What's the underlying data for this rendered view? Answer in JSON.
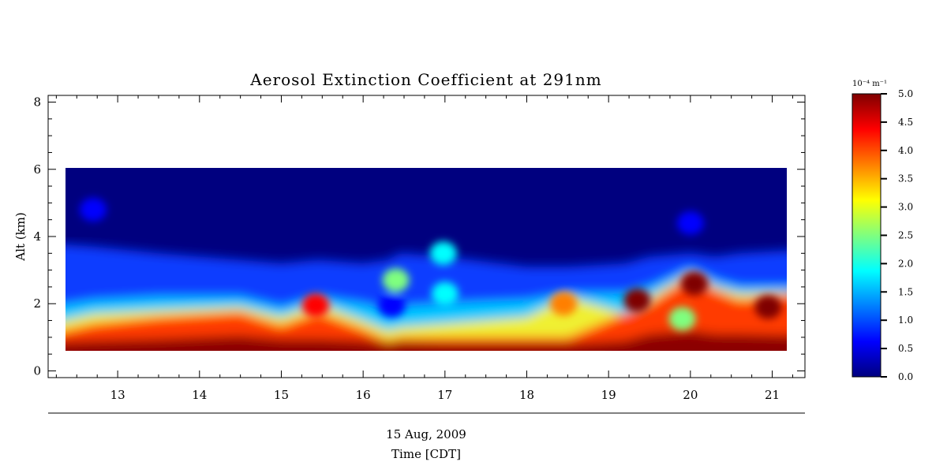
{
  "chart_data": {
    "type": "heatmap",
    "title": "Aerosol Extinction Coefficient at 291nm",
    "ylabel": "Alt (km)",
    "xlabel_date": "15 Aug, 2009",
    "xlabel": "Time [CDT]",
    "x_range": [
      12.15,
      21.4
    ],
    "y_range": [
      -0.2,
      8.2
    ],
    "data_time_range": [
      12.35,
      21.15
    ],
    "data_alt_range": [
      0.6,
      6.0
    ],
    "x_ticks": [
      13,
      14,
      15,
      16,
      17,
      18,
      19,
      20,
      21
    ],
    "y_ticks": [
      0,
      2,
      4,
      6,
      8
    ],
    "colorbar": {
      "unit_label": "10⁻⁴ m⁻¹",
      "range": [
        0.0,
        5.0
      ],
      "ticks": [
        "0.0",
        "0.5",
        "1.0",
        "1.5",
        "2.0",
        "2.5",
        "3.0",
        "3.5",
        "4.0",
        "4.5",
        "5.0"
      ],
      "colormap": [
        "#00007f",
        "#0000ff",
        "#007fff",
        "#00ffff",
        "#7fff7f",
        "#ffff00",
        "#ff7f00",
        "#ff0000",
        "#7f0000"
      ]
    },
    "layer_profiles": {
      "times": [
        12.35,
        12.7,
        13.5,
        14.5,
        15.0,
        15.45,
        16.0,
        16.3,
        16.45,
        17.0,
        18.0,
        18.5,
        19.2,
        19.5,
        20.0,
        20.3,
        20.6,
        21.15
      ],
      "dark_red_top_km": [
        0.85,
        0.9,
        0.95,
        1.05,
        0.95,
        0.95,
        0.9,
        0.8,
        0.85,
        0.8,
        0.8,
        0.8,
        0.9,
        1.1,
        1.2,
        1.1,
        1.1,
        1.05
      ],
      "red_top_km": [
        1.1,
        1.4,
        1.6,
        1.75,
        1.35,
        1.75,
        1.25,
        0.9,
        1.0,
        1.0,
        1.0,
        1.0,
        1.7,
        2.0,
        2.8,
        2.4,
        2.1,
        2.3
      ],
      "yellow_top_km": [
        1.4,
        1.7,
        1.8,
        1.9,
        1.6,
        2.0,
        1.5,
        1.2,
        1.3,
        1.4,
        1.6,
        2.2,
        1.7,
        2.2,
        2.9,
        2.5,
        2.3,
        2.35
      ],
      "cyan_top_km": [
        1.9,
        2.1,
        2.2,
        2.2,
        1.9,
        2.2,
        2.0,
        1.8,
        1.9,
        2.0,
        2.1,
        2.3,
        2.3,
        2.5,
        3.05,
        2.7,
        2.5,
        2.5
      ],
      "blue_top_km": [
        3.8,
        3.7,
        3.5,
        3.3,
        3.2,
        3.3,
        3.2,
        3.3,
        3.5,
        3.4,
        3.1,
        3.1,
        3.2,
        3.4,
        3.5,
        3.4,
        3.5,
        3.6
      ]
    },
    "features": [
      {
        "t": 16.4,
        "alt": 2.7,
        "value": 2.8
      },
      {
        "t": 16.35,
        "alt": 1.95,
        "value": 0.9
      },
      {
        "t": 16.98,
        "alt": 3.5,
        "value": 1.8
      },
      {
        "t": 17.0,
        "alt": 2.3,
        "value": 1.6
      },
      {
        "t": 15.42,
        "alt": 1.95,
        "value": 4.5
      },
      {
        "t": 18.45,
        "alt": 2.0,
        "value": 3.6
      },
      {
        "t": 19.9,
        "alt": 1.55,
        "value": 2.2
      },
      {
        "t": 19.35,
        "alt": 2.1,
        "value": 4.8
      },
      {
        "t": 20.05,
        "alt": 2.6,
        "value": 4.9
      },
      {
        "t": 20.95,
        "alt": 1.9,
        "value": 4.8
      },
      {
        "t": 20.0,
        "alt": 4.4,
        "value": 0.8
      },
      {
        "t": 12.7,
        "alt": 4.8,
        "value": 0.7
      }
    ]
  }
}
